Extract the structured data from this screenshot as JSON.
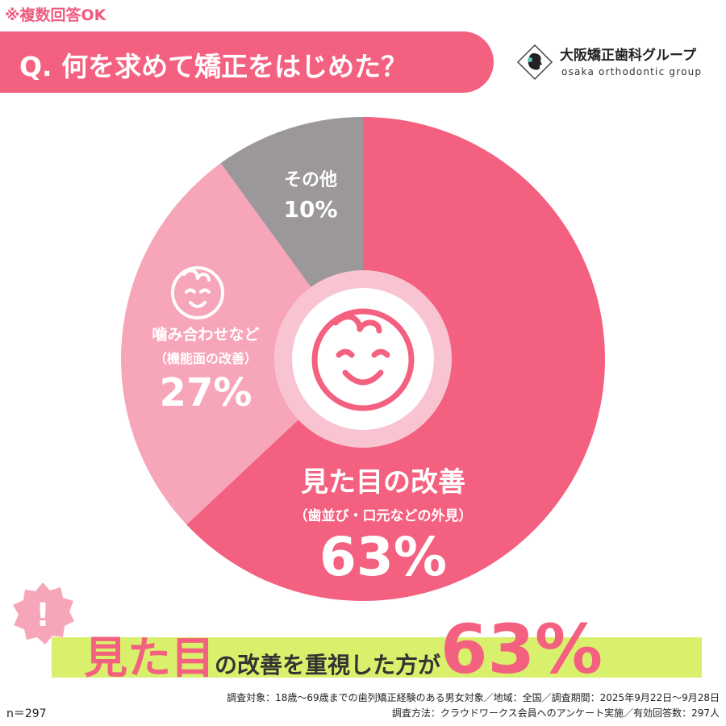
{
  "header_note": "※複数回答OK",
  "question": "Q. 何を求めて矯正をはじめた？",
  "logo": {
    "name": "大阪矯正歯科グループ",
    "subtitle": "osaka orthodontic group",
    "mark": "silhouette-profile-logo"
  },
  "colors": {
    "primary_pink": "#f4607f",
    "mid_pink": "#f7a5b9",
    "gray": "#9b979a",
    "light_pink_ring": "#f8c4d1",
    "highlight_green": "#d9f06c"
  },
  "chart_data": {
    "type": "pie",
    "style": "donut",
    "unit": "%",
    "start_angle_deg": 0,
    "direction": "clockwise",
    "slices": [
      {
        "key": "looks",
        "label": "見た目の改善",
        "sublabel": "（歯並び・口元などの外見）",
        "value": 63,
        "value_label": "63%",
        "color": "#f4607f"
      },
      {
        "key": "bite",
        "label": "噛み合わせなど",
        "sublabel": "（機能面の改善）",
        "value": 27,
        "value_label": "27%",
        "color": "#f7a5b9",
        "icon": "baby-face-icon"
      },
      {
        "key": "other",
        "label": "その他",
        "value": 10,
        "value_label": "10%",
        "color": "#9b979a"
      }
    ],
    "center_icon": "smiling-baby-face-icon"
  },
  "conclusion": {
    "part1": "見た目",
    "part2": "の改善を重視した方が",
    "part3": "63%",
    "badge": "!"
  },
  "sample_size": "n＝297",
  "footnote": {
    "line1": "調査対象：18歳〜69歳までの歯列矯正経験のある男女対象／地域：全国／調査期間：2025年9月22日〜9月28日",
    "line2": "調査方法：クラウドワークス会員へのアンケート実施／有効回答数：297人"
  }
}
